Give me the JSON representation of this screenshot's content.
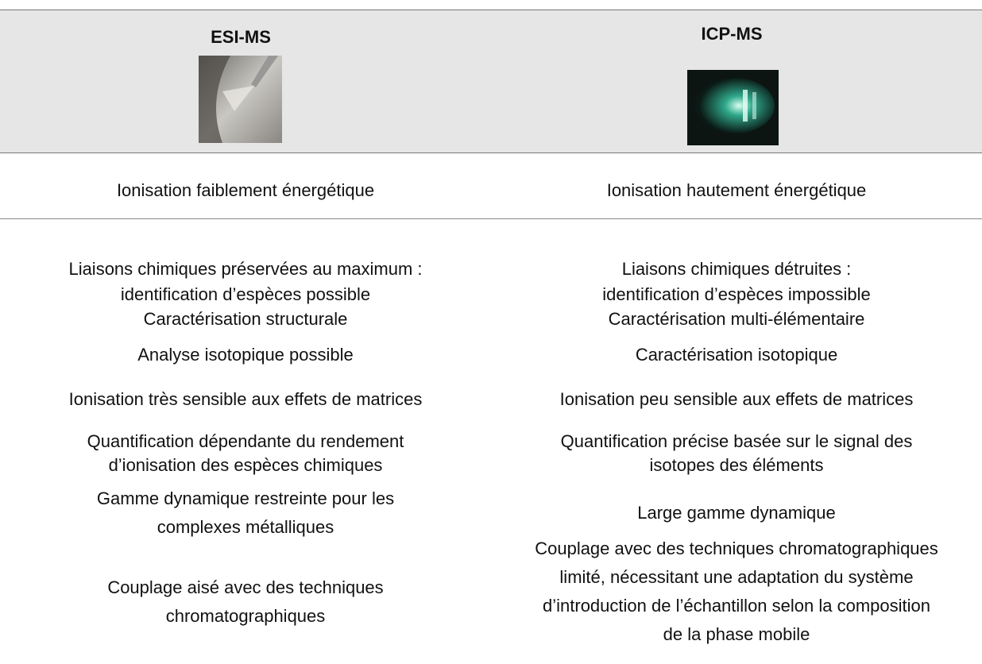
{
  "table": {
    "header": [
      "ESI-MS",
      "ICP-MS"
    ],
    "rows": [
      [
        [
          "Ionisation faiblement énergétique"
        ],
        [
          "Ionisation hautement énergétique"
        ]
      ],
      [
        [
          "Liaisons chimiques préservées au maximum :",
          "identification d’espèces possible"
        ],
        [
          "Liaisons chimiques détruites :",
          "identification d’espèces impossible"
        ]
      ],
      [
        [
          "Caractérisation structurale"
        ],
        [
          "Caractérisation multi-élémentaire"
        ]
      ],
      [
        [
          "Analyse isotopique possible"
        ],
        [
          "Caractérisation isotopique"
        ]
      ],
      [
        [
          "Ionisation très sensible aux effets de matrices"
        ],
        [
          "Ionisation peu sensible aux effets de matrices"
        ]
      ],
      [
        [
          "Quantification dépendante du rendement",
          "d’ionisation des espèces chimiques"
        ],
        [
          "Quantification précise basée sur le signal des",
          "isotopes des éléments"
        ]
      ],
      [
        [
          "Gamme dynamique restreinte pour les",
          "complexes métalliques"
        ],
        [
          "Large gamme dynamique"
        ]
      ],
      [
        [
          "Couplage aisé avec des techniques",
          "chromatographiques"
        ],
        [
          "Couplage avec des techniques chromatographiques",
          "limité, nécessitant une adaptation du système",
          "d’introduction de l’échantillon selon la composition",
          "de la phase mobile"
        ]
      ]
    ]
  }
}
